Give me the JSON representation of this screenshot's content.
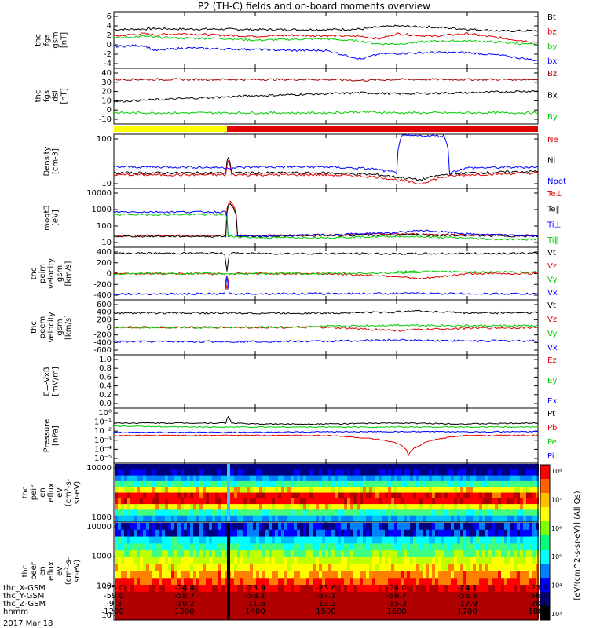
{
  "title": "P2 (TH-C) fields and on-board moments overview",
  "colors": {
    "black": "#000000",
    "red": "#e00000",
    "green": "#00cc00",
    "blue": "#0000ff",
    "yellow": "#ffff00",
    "darkred": "#a00000"
  },
  "chart_data": [
    {
      "type": "line",
      "panel": "fgs_gsm",
      "ylabel_lines": [
        "thc",
        "fgs",
        "gsm",
        "[nT]"
      ],
      "ytick_labels": [
        "6",
        "4",
        "2",
        "0",
        "-2",
        "-4"
      ],
      "ylim": [
        -4,
        6.5
      ],
      "legend": [
        {
          "label": "Bt",
          "color": "black"
        },
        {
          "label": "bz",
          "color": "red"
        },
        {
          "label": "by",
          "color": "green"
        },
        {
          "label": "bx",
          "color": "blue"
        }
      ],
      "series": [
        {
          "name": "Bt",
          "color": "black",
          "x": [
            1200,
            1225,
            1235,
            1300,
            1330,
            1400,
            1430,
            1500,
            1530,
            1545,
            1600,
            1630,
            1700,
            1730,
            1800
          ],
          "values": [
            3.3,
            3.4,
            3.5,
            3.4,
            3.4,
            3.3,
            3.3,
            3.3,
            3.4,
            3.8,
            4.0,
            3.8,
            3.4,
            3.0,
            3.1
          ]
        },
        {
          "name": "bz",
          "color": "red",
          "x": [
            1200,
            1225,
            1235,
            1300,
            1330,
            1400,
            1430,
            1500,
            1530,
            1545,
            1600,
            1630,
            1700,
            1730,
            1800
          ],
          "values": [
            2.0,
            2.5,
            2.3,
            2.5,
            2.2,
            2.0,
            2.2,
            2.1,
            2.0,
            1.5,
            2.5,
            2.0,
            2.5,
            1.6,
            0.8
          ]
        },
        {
          "name": "by",
          "color": "green",
          "x": [
            1200,
            1225,
            1235,
            1300,
            1330,
            1400,
            1430,
            1500,
            1530,
            1545,
            1600,
            1630,
            1700,
            1730,
            1800
          ],
          "values": [
            1.6,
            2.0,
            1.8,
            1.6,
            1.6,
            1.2,
            1.4,
            1.5,
            1.0,
            0.5,
            0.5,
            1.0,
            1.1,
            0.8,
            0.3
          ]
        },
        {
          "name": "bx",
          "color": "blue",
          "x": [
            1200,
            1225,
            1235,
            1300,
            1330,
            1400,
            1430,
            1500,
            1530,
            1545,
            1600,
            1630,
            1700,
            1730,
            1800
          ],
          "values": [
            0.0,
            0.2,
            -0.8,
            -0.3,
            -0.5,
            -0.6,
            -0.8,
            -0.8,
            -2.5,
            -1.5,
            -1.4,
            -1.2,
            -1.2,
            -1.8,
            -2.8
          ]
        }
      ]
    },
    {
      "type": "line",
      "panel": "fgs_dsl",
      "ylabel_lines": [
        "thc",
        "fgs",
        "dsl",
        "[nT]"
      ],
      "ytick_labels": [
        "40",
        "30",
        "20",
        "10",
        "0",
        "-10"
      ],
      "ylim": [
        -14,
        41
      ],
      "legend": [
        {
          "label": "Bz",
          "color": "darkred"
        },
        {
          "label": "Bx",
          "color": "black"
        },
        {
          "label": "By",
          "color": "green"
        }
      ],
      "series": [
        {
          "name": "Bz",
          "color": "darkred",
          "x": [
            1200,
            1300,
            1400,
            1500,
            1530,
            1600,
            1700,
            1800
          ],
          "values": [
            31,
            31,
            31,
            31,
            30,
            31,
            31,
            31
          ]
        },
        {
          "name": "Bx",
          "color": "black",
          "x": [
            1200,
            1300,
            1400,
            1500,
            1530,
            1600,
            1700,
            1800
          ],
          "values": [
            8,
            11,
            14,
            16,
            17,
            16,
            17,
            19
          ]
        },
        {
          "name": "By",
          "color": "green",
          "x": [
            1200,
            1300,
            1400,
            1500,
            1530,
            1600,
            1700,
            1800
          ],
          "values": [
            -4,
            -4,
            -4,
            -4,
            -3,
            -4,
            -4,
            -4
          ]
        }
      ]
    },
    {
      "type": "bar",
      "panel": "mode_bar",
      "segments": [
        {
          "x0": 1200,
          "x1": 1336,
          "color": "yellow"
        },
        {
          "x0": 1336,
          "x1": 1800,
          "color": "red"
        }
      ]
    },
    {
      "type": "line",
      "panel": "density",
      "ylabel_lines": [
        "Density",
        "[cm-3]"
      ],
      "ytick_labels": [
        "100",
        "10"
      ],
      "yscale": "log",
      "ylim": [
        1.5,
        250
      ],
      "legend": [
        {
          "label": "Ne",
          "color": "red"
        },
        {
          "label": "Ni",
          "color": "black"
        },
        {
          "label": "Npot",
          "color": "blue"
        }
      ],
      "series": [
        {
          "name": "Ni",
          "color": "black",
          "x": [
            1200,
            1335,
            1337,
            1340,
            1400,
            1500,
            1545,
            1600,
            1620,
            1640,
            1700,
            1800
          ],
          "values": [
            6,
            6,
            30,
            6,
            6,
            6,
            5,
            4,
            3,
            5,
            6,
            7
          ]
        },
        {
          "name": "Ne",
          "color": "red",
          "x": [
            1200,
            1335,
            1337,
            1340,
            1400,
            1500,
            1545,
            1600,
            1620,
            1640,
            1700,
            1800
          ],
          "values": [
            5,
            5,
            20,
            5,
            5,
            5,
            4,
            3,
            2,
            4,
            5,
            6
          ]
        },
        {
          "name": "Npot",
          "color": "blue",
          "x": [
            1200,
            1300,
            1340,
            1400,
            1500,
            1540,
            1600,
            1605,
            1640,
            1645,
            1700,
            1800
          ],
          "values": [
            11,
            11,
            10,
            11,
            11,
            9,
            6,
            250,
            250,
            6,
            10,
            11
          ]
        }
      ]
    },
    {
      "type": "line",
      "panel": "temperature",
      "ylabel_lines": [
        "moqt3",
        "[eV]"
      ],
      "ytick_labels": [
        "10000",
        "1000",
        "100",
        "10"
      ],
      "yscale": "log",
      "ylim": [
        5,
        10000
      ],
      "legend": [
        {
          "label": "Te⊥",
          "color": "red"
        },
        {
          "label": "Te‖",
          "color": "black"
        },
        {
          "label": "Ti⊥",
          "color": "blue"
        },
        {
          "label": "Ti‖",
          "color": "green"
        }
      ],
      "series": [
        {
          "name": "Te⊥",
          "color": "red",
          "x": [
            1200,
            1335,
            1337,
            1339,
            1345,
            1400,
            1500,
            1600,
            1700,
            1800
          ],
          "values": [
            20,
            20,
            1500,
            2000,
            20,
            20,
            22,
            25,
            22,
            20
          ]
        },
        {
          "name": "Te‖",
          "color": "black",
          "x": [
            1200,
            1335,
            1337,
            1339,
            1345,
            1400,
            1500,
            1600,
            1700,
            1800
          ],
          "values": [
            18,
            18,
            1000,
            1500,
            18,
            18,
            20,
            22,
            20,
            18
          ]
        },
        {
          "name": "Ti⊥",
          "color": "blue",
          "x": [
            1200,
            1335,
            1337,
            1400,
            1500,
            1600,
            1620,
            1700,
            1800
          ],
          "values": [
            500,
            500,
            20,
            18,
            22,
            30,
            40,
            25,
            18
          ]
        },
        {
          "name": "Ti‖",
          "color": "green",
          "x": [
            1200,
            1335,
            1337,
            1400,
            1500,
            1600,
            1700,
            1720,
            1800
          ],
          "values": [
            350,
            350,
            18,
            15,
            15,
            18,
            14,
            12,
            12
          ]
        }
      ]
    },
    {
      "type": "line",
      "panel": "peim_velocity",
      "ylabel_lines": [
        "thc",
        "peim",
        "velocity",
        "gsm",
        "[km/s]"
      ],
      "ytick_labels": [
        "400",
        "200",
        "0",
        "-200",
        "-400"
      ],
      "ylim": [
        -450,
        450
      ],
      "legend": [
        {
          "label": "Vt",
          "color": "black"
        },
        {
          "label": "Vz",
          "color": "red"
        },
        {
          "label": "Vy",
          "color": "green"
        },
        {
          "label": "Vx",
          "color": "blue"
        }
      ],
      "series": [
        {
          "name": "Vt",
          "color": "black",
          "x": [
            1200,
            1334,
            1336,
            1338,
            1340,
            1400,
            1500,
            1600,
            1700,
            1800
          ],
          "values": [
            370,
            370,
            50,
            370,
            370,
            365,
            365,
            360,
            365,
            370
          ]
        },
        {
          "name": "Vz",
          "color": "red",
          "x": [
            1200,
            1334,
            1336,
            1338,
            1400,
            1500,
            1600,
            1620,
            1700,
            1800
          ],
          "values": [
            0,
            0,
            -300,
            0,
            0,
            0,
            -50,
            -100,
            0,
            0
          ]
        },
        {
          "name": "Vy",
          "color": "green",
          "x": [
            1200,
            1400,
            1500,
            1580,
            1600,
            1700,
            1800
          ],
          "values": [
            0,
            0,
            0,
            20,
            40,
            30,
            30
          ]
        },
        {
          "name": "Vx",
          "color": "blue",
          "x": [
            1200,
            1334,
            1336,
            1338,
            1400,
            1500,
            1600,
            1700,
            1800
          ],
          "values": [
            -370,
            -370,
            -50,
            -370,
            -365,
            -365,
            -360,
            -365,
            -370
          ]
        }
      ]
    },
    {
      "type": "line",
      "panel": "peem_velocity",
      "ylabel_lines": [
        "thc",
        "peem",
        "velocity",
        "gsm",
        "[km/s]"
      ],
      "ytick_labels": [
        "600",
        "400",
        "200",
        "0",
        "-200",
        "-400",
        "-600"
      ],
      "ylim": [
        -650,
        650
      ],
      "legend": [
        {
          "label": "Vt",
          "color": "black"
        },
        {
          "label": "Vz",
          "color": "red"
        },
        {
          "label": "Vy",
          "color": "green"
        },
        {
          "label": "Vx",
          "color": "blue"
        }
      ],
      "series": [
        {
          "name": "Vt",
          "color": "black",
          "x": [
            1200,
            1300,
            1400,
            1500,
            1600,
            1610,
            1700,
            1800
          ],
          "values": [
            360,
            360,
            355,
            360,
            380,
            420,
            360,
            370
          ]
        },
        {
          "name": "Vz",
          "color": "red",
          "x": [
            1200,
            1400,
            1500,
            1600,
            1700,
            1800
          ],
          "values": [
            0,
            0,
            0,
            -80,
            -20,
            0
          ]
        },
        {
          "name": "Vy",
          "color": "green",
          "x": [
            1200,
            1400,
            1500,
            1600,
            1700,
            1800
          ],
          "values": [
            0,
            0,
            20,
            60,
            40,
            40
          ]
        },
        {
          "name": "Vx",
          "color": "blue",
          "x": [
            1200,
            1300,
            1400,
            1500,
            1600,
            1700,
            1800
          ],
          "values": [
            -360,
            -360,
            -355,
            -350,
            -320,
            -340,
            -340
          ]
        }
      ]
    },
    {
      "type": "line",
      "panel": "efield",
      "ylabel_lines": [
        "E=-VxB",
        "[mV/m]"
      ],
      "ytick_labels": [
        "1.0",
        "0.8",
        "0.6",
        "0.4",
        "0.2",
        "0.0"
      ],
      "ylim": [
        0,
        1
      ],
      "legend": [
        {
          "label": "Ez",
          "color": "red"
        },
        {
          "label": "Ey",
          "color": "green"
        },
        {
          "label": "Ex",
          "color": "blue"
        }
      ],
      "series": []
    },
    {
      "type": "line",
      "panel": "pressure",
      "ylabel_lines": [
        "Pressure",
        "[nPa]"
      ],
      "ytick_labels": [
        "10⁰",
        "10⁻¹",
        "10⁻²",
        "10⁻³",
        "10⁻⁴",
        "10⁻⁵"
      ],
      "yscale": "log",
      "ylim": [
        8e-06,
        1
      ],
      "legend": [
        {
          "label": "Pt",
          "color": "black"
        },
        {
          "label": "Pb",
          "color": "red"
        },
        {
          "label": "Pe",
          "color": "green"
        },
        {
          "label": "Pi",
          "color": "blue"
        }
      ],
      "series": [
        {
          "name": "Pt",
          "color": "black",
          "x": [
            1200,
            1335,
            1337,
            1340,
            1400,
            1500,
            1600,
            1700,
            1800
          ],
          "values": [
            0.05,
            0.05,
            0.2,
            0.05,
            0.04,
            0.04,
            0.05,
            0.04,
            0.05
          ]
        },
        {
          "name": "Pb",
          "color": "red",
          "x": [
            1200,
            1300,
            1400,
            1500,
            1600,
            1610,
            1620,
            1700,
            1800
          ],
          "values": [
            0.003,
            0.003,
            0.003,
            0.003,
            0.0005,
            3e-05,
            0.0003,
            0.003,
            0.003
          ]
        },
        {
          "name": "Pe",
          "color": "green",
          "x": [
            1200,
            1300,
            1400,
            1500,
            1600,
            1700,
            1800
          ],
          "values": [
            0.025,
            0.02,
            0.02,
            0.02,
            0.02,
            0.02,
            0.02
          ]
        },
        {
          "name": "Pi",
          "color": "blue",
          "x": [
            1200,
            1300,
            1400,
            1500,
            1600,
            1700,
            1800
          ],
          "values": [
            0.006,
            0.006,
            0.006,
            0.007,
            0.007,
            0.007,
            0.007
          ]
        }
      ]
    },
    {
      "type": "heatmap",
      "panel": "peir_spectrogram",
      "ylabel_lines": [
        "thc",
        "peir",
        "en",
        "eflux",
        "eV",
        "(cm²-s-",
        "sr-eV)"
      ],
      "ytick_labels": [
        "10000",
        "1000"
      ],
      "yscale": "log"
    },
    {
      "type": "heatmap",
      "panel": "peer_spectrogram",
      "ylabel_lines": [
        "thc",
        "peer",
        "en",
        "eflux",
        "eV",
        "(cm²-s-",
        "sr-eV)"
      ],
      "ytick_labels": [
        "10000",
        "1000",
        "100",
        "10"
      ],
      "yscale": "log"
    }
  ],
  "colorbar": {
    "label": "[eV/(cm^2-s-sr-eV)] (All Qs)",
    "ticks": [
      "10⁸",
      "10⁷",
      "10⁶",
      "10⁵",
      "10⁴",
      "10³"
    ]
  },
  "xaxis": {
    "major_ticks": [
      1200,
      1300,
      1400,
      1500,
      1600,
      1700,
      1800
    ],
    "rows": [
      {
        "label": "thc_X-GSM",
        "values": [
          "-25.0",
          "-24.4",
          "-23.9",
          "-23.6",
          "-24.0",
          "-24.1",
          "-23.9"
        ]
      },
      {
        "label": "thc_Y-GSM",
        "values": [
          "-59.0",
          "-58.7",
          "-58.1",
          "-57.1",
          "-56.7",
          "-56.6",
          "-56.3"
        ]
      },
      {
        "label": "thc_Z-GSM",
        "values": [
          "-9.3",
          "-10.2",
          "-11.6",
          "-13.3",
          "-15.3",
          "-17.9",
          "-20.6"
        ]
      },
      {
        "label": "hhmm",
        "values": [
          "1200",
          "1300",
          "1400",
          "1500",
          "1600",
          "1700",
          "1800"
        ]
      }
    ],
    "date": "2017 Mar 18"
  }
}
